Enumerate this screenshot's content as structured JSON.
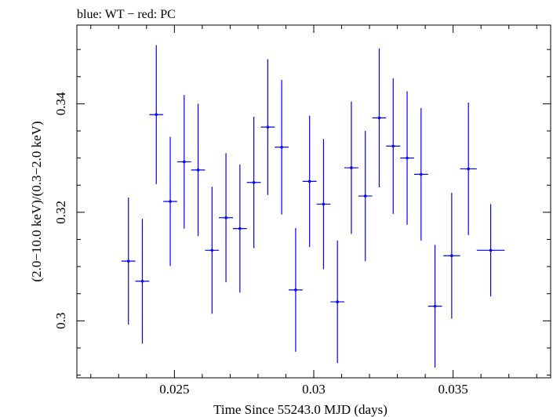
{
  "chart_data": {
    "type": "scatter",
    "title": "blue: WT − red: PC",
    "xlabel": "Time Since 55243.0 MJD (days)",
    "ylabel": "(2.0−10.0 keV)/(0.3−2.0 keV)",
    "xlim": [
      0.0215,
      0.0385
    ],
    "ylim": [
      0.2895,
      0.3545
    ],
    "x_ticks": [
      0.025,
      0.03,
      0.035
    ],
    "x_tick_labels": [
      "0.025",
      "0.03",
      "0.035"
    ],
    "y_ticks": [
      0.3,
      0.32,
      0.34
    ],
    "y_tick_labels": [
      "0.3",
      "0.32",
      "0.34"
    ],
    "grid": false,
    "series": [
      {
        "color": "#0000ff",
        "points": [
          {
            "x": 0.02335,
            "xerr": 0.00025,
            "y": 0.311,
            "yerr": 0.0117
          },
          {
            "x": 0.02385,
            "xerr": 0.00025,
            "y": 0.3073,
            "yerr": 0.0115
          },
          {
            "x": 0.02435,
            "xerr": 0.00025,
            "y": 0.338,
            "yerr": 0.0128
          },
          {
            "x": 0.02485,
            "xerr": 0.00025,
            "y": 0.322,
            "yerr": 0.0119
          },
          {
            "x": 0.02535,
            "xerr": 0.00025,
            "y": 0.3293,
            "yerr": 0.0123
          },
          {
            "x": 0.02585,
            "xerr": 0.00025,
            "y": 0.3278,
            "yerr": 0.0122
          },
          {
            "x": 0.02635,
            "xerr": 0.00025,
            "y": 0.313,
            "yerr": 0.0117
          },
          {
            "x": 0.02685,
            "xerr": 0.00025,
            "y": 0.319,
            "yerr": 0.0119
          },
          {
            "x": 0.02735,
            "xerr": 0.00025,
            "y": 0.317,
            "yerr": 0.0118
          },
          {
            "x": 0.02785,
            "xerr": 0.00025,
            "y": 0.3255,
            "yerr": 0.0121
          },
          {
            "x": 0.02835,
            "xerr": 0.00025,
            "y": 0.3357,
            "yerr": 0.0125
          },
          {
            "x": 0.02885,
            "xerr": 0.00025,
            "y": 0.332,
            "yerr": 0.0124
          },
          {
            "x": 0.02935,
            "xerr": 0.00025,
            "y": 0.3057,
            "yerr": 0.0114
          },
          {
            "x": 0.02985,
            "xerr": 0.00025,
            "y": 0.3257,
            "yerr": 0.0121
          },
          {
            "x": 0.03035,
            "xerr": 0.00025,
            "y": 0.3215,
            "yerr": 0.012
          },
          {
            "x": 0.03085,
            "xerr": 0.00025,
            "y": 0.3035,
            "yerr": 0.0113
          },
          {
            "x": 0.03135,
            "xerr": 0.00025,
            "y": 0.3282,
            "yerr": 0.0122
          },
          {
            "x": 0.03185,
            "xerr": 0.00025,
            "y": 0.323,
            "yerr": 0.012
          },
          {
            "x": 0.03235,
            "xerr": 0.00025,
            "y": 0.3374,
            "yerr": 0.0128
          },
          {
            "x": 0.03285,
            "xerr": 0.00025,
            "y": 0.3322,
            "yerr": 0.0125
          },
          {
            "x": 0.03335,
            "xerr": 0.00025,
            "y": 0.33,
            "yerr": 0.0123
          },
          {
            "x": 0.03385,
            "xerr": 0.00025,
            "y": 0.327,
            "yerr": 0.0122
          },
          {
            "x": 0.03435,
            "xerr": 0.00025,
            "y": 0.3027,
            "yerr": 0.0113
          },
          {
            "x": 0.03495,
            "xerr": 0.0003,
            "y": 0.312,
            "yerr": 0.0116
          },
          {
            "x": 0.03555,
            "xerr": 0.0003,
            "y": 0.328,
            "yerr": 0.0122
          },
          {
            "x": 0.03635,
            "xerr": 0.0005,
            "y": 0.313,
            "yerr": 0.0085
          }
        ]
      }
    ]
  }
}
